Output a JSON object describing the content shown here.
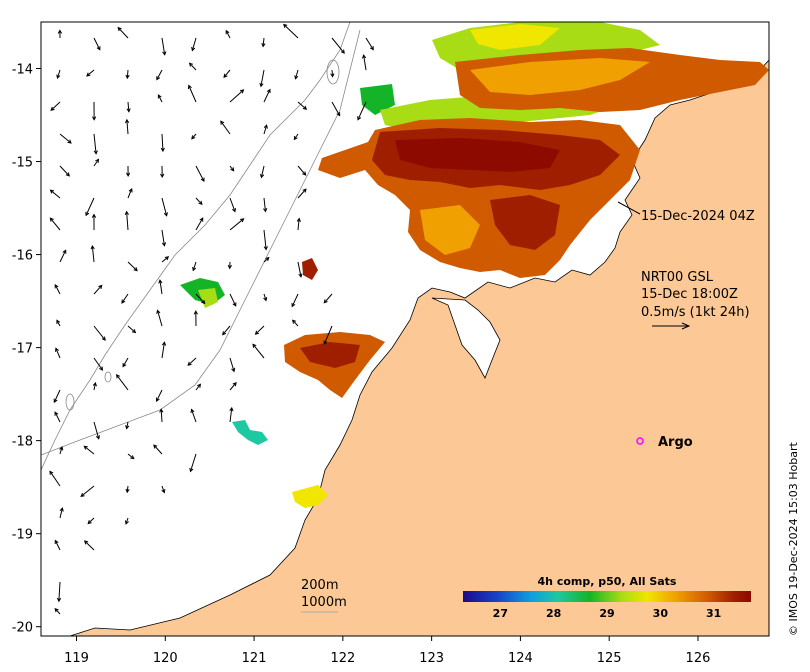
{
  "map": {
    "lon_range": [
      118.6,
      126.8
    ],
    "lat_range": [
      -20.1,
      -13.5
    ],
    "x_ticks": [
      "119",
      "120",
      "121",
      "122",
      "123",
      "124",
      "125",
      "126"
    ],
    "y_ticks": [
      "-14",
      "-15",
      "-16",
      "-17",
      "-18",
      "-19",
      "-20"
    ],
    "land_color": "#fcc896",
    "sea_color": "#ffffff"
  },
  "annotations": {
    "sst_time": "15-Dec-2024 04Z",
    "current_product": "NRT00 GSL",
    "current_time": "15-Dec 18:00Z",
    "current_scale": "0.5m/s (1kt 24h)",
    "argo_label": "Argo",
    "isobath_200": "200m",
    "isobath_1000": "1000m"
  },
  "colorbar": {
    "title": "4h comp, p50, All Sats",
    "ticks": [
      "27",
      "28",
      "29",
      "30",
      "31"
    ],
    "range": [
      26.3,
      31.7
    ],
    "colors": [
      "#1a0a8c",
      "#1744c8",
      "#10a0e0",
      "#1ec8a0",
      "#14b428",
      "#a8dc14",
      "#f0e600",
      "#f0a000",
      "#d05a00",
      "#a01e00",
      "#8c0a00"
    ]
  },
  "credit": "© IMOS 19-Dec-2024 15:03 Hobart"
}
